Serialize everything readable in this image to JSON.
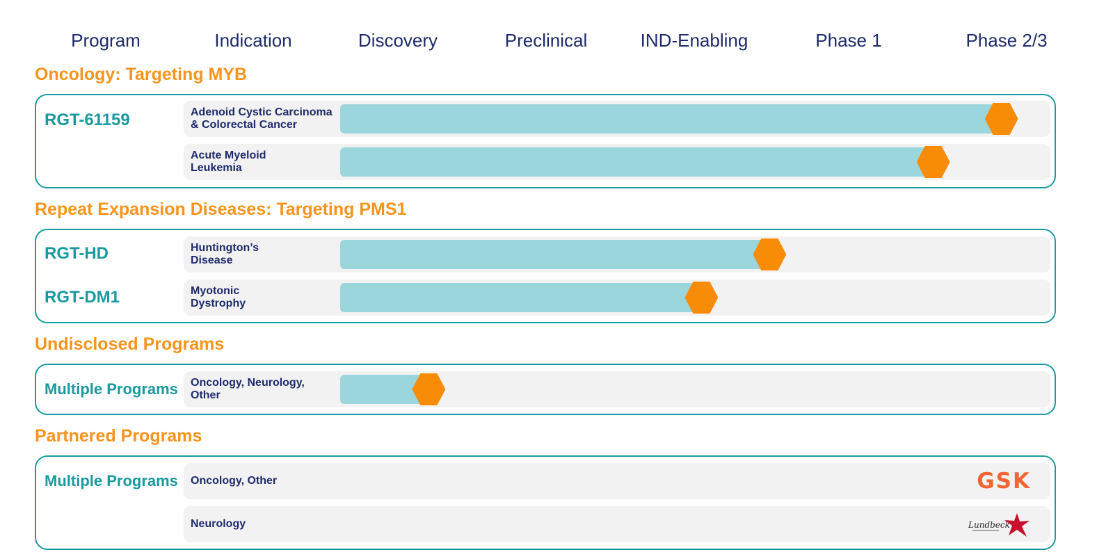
{
  "colors": {
    "header": "#1f2a6b",
    "section": "#f7941d",
    "program": "#1a9aa0",
    "bar": "#9ad6dc",
    "marker": "#f98c07",
    "track": "#f2f2f2"
  },
  "columns": [
    "Program",
    "Indication",
    "Discovery",
    "Preclinical",
    "IND-Enabling",
    "Phase 1",
    "Phase 2/3"
  ],
  "sections": [
    {
      "title": "Oncology: Targeting MYB",
      "programs": [
        "RGT-61159"
      ],
      "rows": [
        {
          "indication": "Adenoid Cystic Carcinoma\n& Colorectal Cancer",
          "stage_progress": 0.97
        },
        {
          "indication": "Acute Myeloid\nLeukemia",
          "stage_progress": 0.87
        }
      ]
    },
    {
      "title": "Repeat Expansion Diseases: Targeting PMS1",
      "programs": [
        "RGT-HD",
        "RGT-DM1"
      ],
      "rows": [
        {
          "indication": "Huntington’s\nDisease",
          "stage_progress": 0.63
        },
        {
          "indication": "Myotonic\nDystrophy",
          "stage_progress": 0.53
        }
      ]
    },
    {
      "title": "Undisclosed Programs",
      "programs": [
        "Multiple Programs"
      ],
      "rows": [
        {
          "indication": "Oncology, Neurology,\nOther",
          "stage_progress": 0.13
        }
      ]
    },
    {
      "title": "Partnered Programs",
      "programs": [
        "Multiple Programs"
      ],
      "rows": [
        {
          "indication": "Oncology, Other",
          "partner": "GSK",
          "partner_logo": "gsk-logo"
        },
        {
          "indication": "Neurology",
          "partner": "Lundbeck",
          "partner_logo": "lundbeck-logo"
        }
      ]
    }
  ]
}
